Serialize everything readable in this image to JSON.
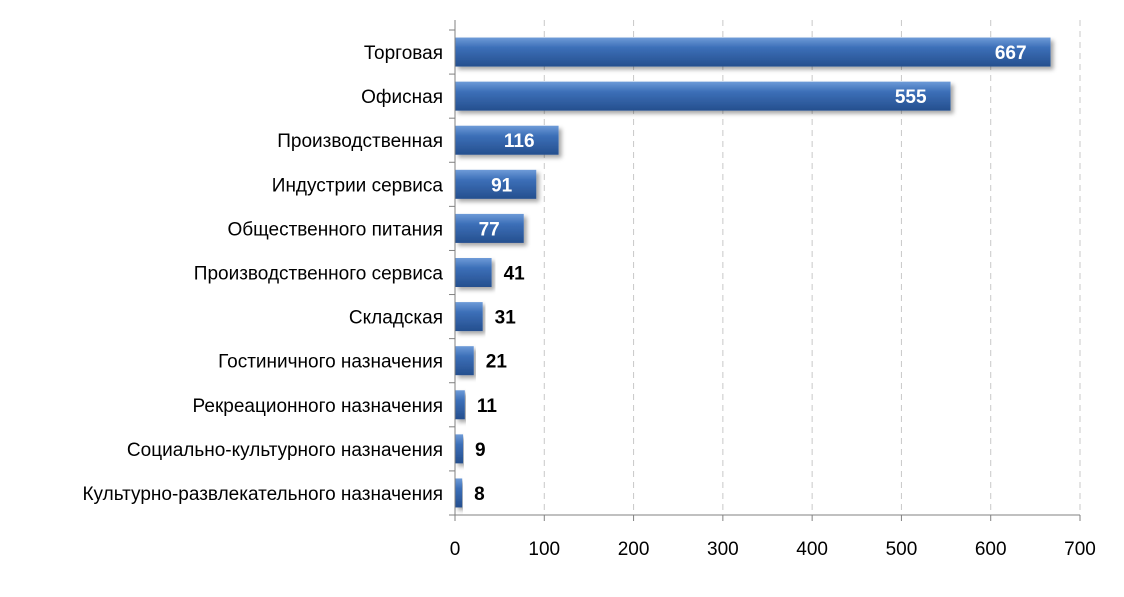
{
  "chart_data": {
    "type": "bar",
    "orientation": "horizontal",
    "title": "",
    "xlabel": "",
    "ylabel": "",
    "categories": [
      "Торговая",
      "Офисная",
      "Производственная",
      "Индустрии сервиса",
      "Общественного питания",
      "Производственного сервиса",
      "Складская",
      "Гостиничного назначения",
      "Рекреационного назначения",
      "Социально-культурного назначения",
      "Культурно-развлекательного назначения"
    ],
    "values": [
      667,
      555,
      116,
      91,
      77,
      41,
      31,
      21,
      11,
      9,
      8
    ],
    "xlim": [
      0,
      700
    ],
    "xticks": [
      0,
      100,
      200,
      300,
      400,
      500,
      600,
      700
    ],
    "grid": "vertical dashed",
    "legend": "none",
    "colors": {
      "bar_top": "#6E9BD8",
      "bar_mid": "#3C6FB8",
      "bar_bottom": "#254F8E",
      "label_inside": "#ffffff",
      "label_outside": "#000000",
      "grid": "#c8c8c8",
      "axis": "#808080"
    }
  }
}
